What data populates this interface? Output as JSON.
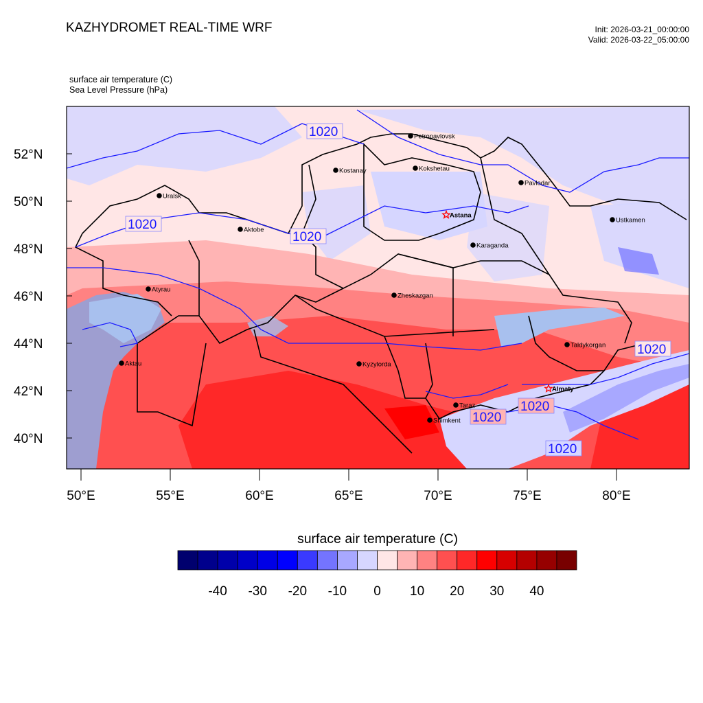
{
  "header": {
    "title": "KAZHYDROMET REAL-TIME WRF",
    "init": "Init: 2026-03-21_00:00:00",
    "valid": "Valid: 2026-03-22_05:00:00",
    "variable_1": "surface air temperature   (C)",
    "variable_2": "Sea Level Pressure   (hPa)"
  },
  "map": {
    "lat_ticks": [
      "52°N",
      "50°N",
      "48°N",
      "46°N",
      "44°N",
      "42°N",
      "40°N"
    ],
    "lon_ticks": [
      "50°E",
      "55°E",
      "60°E",
      "65°E",
      "70°E",
      "75°E",
      "80°E"
    ],
    "cities": [
      {
        "name": "Petropavlovsk",
        "marker": "dot"
      },
      {
        "name": "Kostanay",
        "marker": "dot"
      },
      {
        "name": "Kokshetau",
        "marker": "dot"
      },
      {
        "name": "Pavlodar",
        "marker": "dot"
      },
      {
        "name": "Uralsk",
        "marker": "dot"
      },
      {
        "name": "Aktobe",
        "marker": "dot"
      },
      {
        "name": "Astana",
        "marker": "star",
        "bold": true
      },
      {
        "name": "Ustkamen",
        "marker": "dot"
      },
      {
        "name": "Karaganda",
        "marker": "dot"
      },
      {
        "name": "Atyrau",
        "marker": "dot"
      },
      {
        "name": "Zheskazgan",
        "marker": "dot"
      },
      {
        "name": "Taldykorgan",
        "marker": "dot"
      },
      {
        "name": "Aktau",
        "marker": "dot"
      },
      {
        "name": "Kyzylorda",
        "marker": "dot"
      },
      {
        "name": "Almaty",
        "marker": "star",
        "bold": true
      },
      {
        "name": "Taraz",
        "marker": "dot"
      },
      {
        "name": "Shimkent",
        "marker": "dot"
      }
    ],
    "isobar_label": "1020",
    "colors": {
      "isobar": "#1a1aff",
      "border": "#000000",
      "star": "#ff0000"
    }
  },
  "colorbar": {
    "title": "surface air temperature  (C)",
    "labels": [
      "-40",
      "-30",
      "-20",
      "-10",
      "0",
      "10",
      "20",
      "30",
      "40"
    ],
    "colors": [
      "#00006e",
      "#00008c",
      "#0000aa",
      "#0000c8",
      "#0000e6",
      "#0000ff",
      "#3a3aff",
      "#7474ff",
      "#a8a8ff",
      "#d6d6ff",
      "#ffe6e6",
      "#ffb4b4",
      "#ff8282",
      "#ff5050",
      "#ff2828",
      "#ff0000",
      "#d70000",
      "#b40000",
      "#960000",
      "#780000"
    ]
  }
}
